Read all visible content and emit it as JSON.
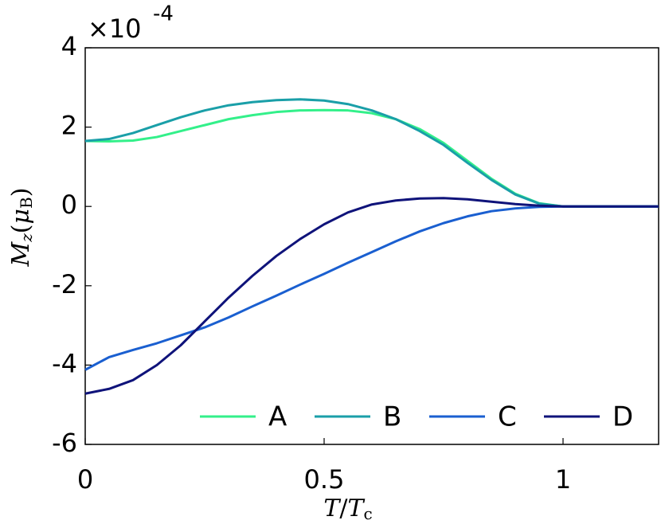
{
  "chart_data": {
    "type": "line",
    "axis_multiplier": "×10",
    "axis_multiplier_exponent": "-4",
    "xlabel_parts": [
      "T",
      "/",
      "T",
      "c"
    ],
    "ylabel_parts": [
      "M",
      "z",
      "(",
      "μ",
      "B",
      ")"
    ],
    "x": [
      0,
      0.05,
      0.1,
      0.15,
      0.2,
      0.25,
      0.3,
      0.35,
      0.4,
      0.45,
      0.5,
      0.55,
      0.6,
      0.65,
      0.7,
      0.75,
      0.8,
      0.85,
      0.9,
      0.95,
      1.0,
      1.05,
      1.1,
      1.15,
      1.2
    ],
    "series": [
      {
        "name": "A",
        "color": "#33f08a",
        "values": [
          1.65,
          1.64,
          1.66,
          1.75,
          1.9,
          2.05,
          2.2,
          2.3,
          2.38,
          2.42,
          2.43,
          2.42,
          2.35,
          2.2,
          1.95,
          1.6,
          1.15,
          0.7,
          0.32,
          0.08,
          0,
          0,
          0,
          0,
          0
        ]
      },
      {
        "name": "B",
        "color": "#1a9fa8",
        "values": [
          1.65,
          1.7,
          1.85,
          2.05,
          2.25,
          2.42,
          2.55,
          2.63,
          2.68,
          2.7,
          2.67,
          2.58,
          2.42,
          2.2,
          1.9,
          1.55,
          1.1,
          0.67,
          0.3,
          0.07,
          0,
          0,
          0,
          0,
          0
        ]
      },
      {
        "name": "C",
        "color": "#1a5fd0",
        "values": [
          -4.12,
          -3.8,
          -3.62,
          -3.45,
          -3.25,
          -3.05,
          -2.8,
          -2.52,
          -2.25,
          -1.97,
          -1.7,
          -1.42,
          -1.15,
          -0.88,
          -0.63,
          -0.42,
          -0.25,
          -0.12,
          -0.05,
          -0.01,
          0,
          0,
          0,
          0,
          0
        ]
      },
      {
        "name": "D",
        "color": "#0f137a",
        "values": [
          -4.72,
          -4.6,
          -4.38,
          -4.0,
          -3.5,
          -2.9,
          -2.3,
          -1.75,
          -1.25,
          -0.82,
          -0.45,
          -0.15,
          0.05,
          0.15,
          0.2,
          0.21,
          0.18,
          0.12,
          0.06,
          0.02,
          0,
          0,
          0,
          0,
          0
        ]
      }
    ],
    "xlim": [
      0,
      1.2
    ],
    "xticks": [
      0,
      0.5,
      1
    ],
    "ylim": [
      -6,
      4
    ],
    "yticks": [
      -6,
      -4,
      -2,
      0,
      2,
      4
    ],
    "legend": "lower-right"
  }
}
